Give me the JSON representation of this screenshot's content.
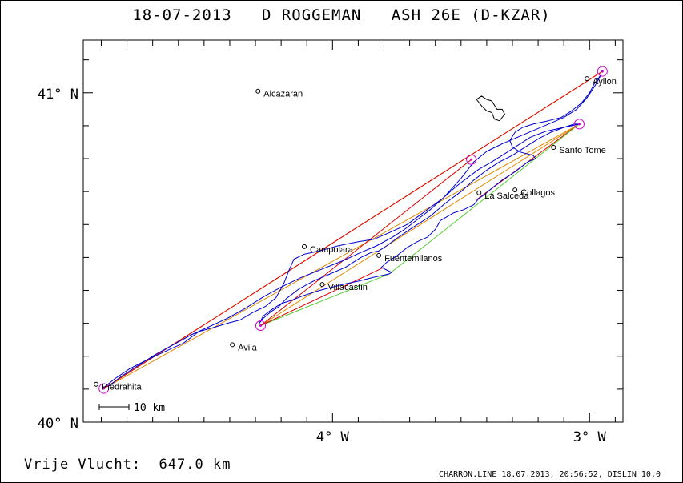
{
  "title": {
    "date": "18-07-2013",
    "pilot": "D ROGGEMAN",
    "glider": "ASH 26E (D-KZAR)"
  },
  "footer": {
    "distance_label": "Vrije Vlucht:",
    "distance_value": "647.0 km",
    "credits": "CHARRON.LINE 18.07.2013, 20:56:52, DISLIN 10.0"
  },
  "axes": {
    "lat_labels": [
      "41° N",
      "40° N"
    ],
    "lon_labels": [
      "4° W",
      "3° W"
    ],
    "lat_range": [
      40.0,
      41.16
    ],
    "lon_range": [
      -4.97,
      -2.87
    ]
  },
  "scale_bar": {
    "label": "10 km"
  },
  "colors": {
    "track": "#0000cc",
    "turnpoint": "#cc00cc",
    "leg_red": "#dd0000",
    "leg_orange": "#e08800",
    "leg_green": "#55cc33",
    "coast": "#000000"
  },
  "towns": [
    {
      "name": "Alcazaran",
      "lon": -4.29,
      "lat": 41.005
    },
    {
      "name": "Ayllon",
      "lon": -3.01,
      "lat": 41.043
    },
    {
      "name": "Santo Tome",
      "lon": -3.14,
      "lat": 40.834
    },
    {
      "name": "Collagos",
      "lon": -3.29,
      "lat": 40.705
    },
    {
      "name": "La Salceda",
      "lon": -3.43,
      "lat": 40.696
    },
    {
      "name": "Campolara",
      "lon": -4.11,
      "lat": 40.533
    },
    {
      "name": "Fuentemilanos",
      "lon": -3.82,
      "lat": 40.506
    },
    {
      "name": "Villacastin",
      "lon": -4.04,
      "lat": 40.418
    },
    {
      "name": "Avila",
      "lon": -4.39,
      "lat": 40.235
    },
    {
      "name": "Piedrahita",
      "lon": -4.92,
      "lat": 40.115
    }
  ],
  "turnpoints": [
    {
      "lon": -4.89,
      "lat": 40.102
    },
    {
      "lon": -2.95,
      "lat": 41.065
    },
    {
      "lon": -3.04,
      "lat": 40.905
    },
    {
      "lon": -3.46,
      "lat": 40.797
    },
    {
      "lon": -4.28,
      "lat": 40.293
    }
  ],
  "legs": [
    {
      "color": "orange",
      "points": [
        [
          -4.89,
          40.102
        ],
        [
          -2.95,
          41.065
        ]
      ]
    },
    {
      "color": "orange",
      "points": [
        [
          -4.89,
          40.102
        ],
        [
          -3.04,
          40.905
        ]
      ]
    },
    {
      "color": "red",
      "points": [
        [
          -4.89,
          40.102
        ],
        [
          -2.95,
          41.065
        ]
      ]
    },
    {
      "color": "orange",
      "points": [
        [
          -3.04,
          40.905
        ],
        [
          -4.28,
          40.293
        ]
      ]
    },
    {
      "color": "red",
      "points": [
        [
          -3.46,
          40.797
        ],
        [
          -4.28,
          40.293
        ]
      ]
    },
    {
      "color": "red",
      "points": [
        [
          -3.04,
          40.905
        ],
        [
          -3.44,
          40.675
        ]
      ]
    },
    {
      "color": "green",
      "points": [
        [
          -4.28,
          40.293
        ],
        [
          -3.78,
          40.45
        ],
        [
          -3.04,
          40.905
        ]
      ]
    },
    {
      "color": "red",
      "points": [
        [
          -4.28,
          40.293
        ],
        [
          -3.8,
          40.47
        ]
      ]
    }
  ],
  "track": [
    [
      -4.89,
      40.105
    ],
    [
      -4.85,
      40.13
    ],
    [
      -4.79,
      40.162
    ],
    [
      -4.72,
      40.19
    ],
    [
      -4.65,
      40.215
    ],
    [
      -4.58,
      40.24
    ],
    [
      -4.52,
      40.275
    ],
    [
      -4.46,
      40.288
    ],
    [
      -4.41,
      40.3
    ],
    [
      -4.36,
      40.31
    ],
    [
      -4.31,
      40.333
    ],
    [
      -4.26,
      40.352
    ],
    [
      -4.22,
      40.378
    ],
    [
      -4.19,
      40.42
    ],
    [
      -4.17,
      40.46
    ],
    [
      -4.15,
      40.495
    ],
    [
      -4.11,
      40.51
    ],
    [
      -4.05,
      40.52
    ],
    [
      -3.98,
      40.535
    ],
    [
      -3.9,
      40.548
    ],
    [
      -3.84,
      40.555
    ],
    [
      -3.78,
      40.575
    ],
    [
      -3.71,
      40.6
    ],
    [
      -3.64,
      40.64
    ],
    [
      -3.57,
      40.68
    ],
    [
      -3.5,
      40.74
    ],
    [
      -3.45,
      40.79
    ],
    [
      -3.4,
      40.822
    ],
    [
      -3.34,
      40.845
    ],
    [
      -3.28,
      40.865
    ],
    [
      -3.22,
      40.885
    ],
    [
      -3.16,
      40.905
    ],
    [
      -3.1,
      40.925
    ],
    [
      -3.05,
      40.95
    ],
    [
      -3.01,
      40.985
    ],
    [
      -2.98,
      41.02
    ],
    [
      -2.955,
      41.055
    ],
    [
      -2.98,
      41.03
    ],
    [
      -3.0,
      41.0
    ],
    [
      -3.03,
      40.97
    ],
    [
      -3.07,
      40.945
    ],
    [
      -3.11,
      40.925
    ],
    [
      -3.16,
      40.915
    ],
    [
      -3.22,
      40.905
    ],
    [
      -3.26,
      40.895
    ],
    [
      -3.29,
      40.88
    ],
    [
      -3.31,
      40.855
    ],
    [
      -3.3,
      40.835
    ],
    [
      -3.27,
      40.82
    ],
    [
      -3.22,
      40.81
    ],
    [
      -3.21,
      40.8
    ],
    [
      -3.24,
      40.79
    ],
    [
      -3.29,
      40.76
    ],
    [
      -3.34,
      40.735
    ],
    [
      -3.38,
      40.71
    ],
    [
      -3.41,
      40.69
    ],
    [
      -3.43,
      40.68
    ],
    [
      -3.45,
      40.66
    ],
    [
      -3.49,
      40.645
    ],
    [
      -3.53,
      40.635
    ],
    [
      -3.58,
      40.612
    ],
    [
      -3.6,
      40.585
    ],
    [
      -3.63,
      40.562
    ],
    [
      -3.67,
      40.548
    ],
    [
      -3.71,
      40.53
    ],
    [
      -3.75,
      40.505
    ],
    [
      -3.79,
      40.485
    ],
    [
      -3.81,
      40.47
    ],
    [
      -3.79,
      40.462
    ],
    [
      -3.77,
      40.455
    ],
    [
      -3.78,
      40.45
    ],
    [
      -3.84,
      40.44
    ],
    [
      -3.9,
      40.428
    ],
    [
      -3.95,
      40.42
    ],
    [
      -4.0,
      40.41
    ],
    [
      -4.05,
      40.4
    ],
    [
      -4.11,
      40.385
    ],
    [
      -4.16,
      40.37
    ],
    [
      -4.2,
      40.36
    ],
    [
      -4.24,
      40.34
    ],
    [
      -4.27,
      40.322
    ],
    [
      -4.285,
      40.3
    ],
    [
      -4.27,
      40.315
    ],
    [
      -4.24,
      40.335
    ],
    [
      -4.21,
      40.35
    ],
    [
      -4.18,
      40.375
    ],
    [
      -4.13,
      40.405
    ],
    [
      -4.07,
      40.43
    ],
    [
      -4.01,
      40.45
    ],
    [
      -3.95,
      40.47
    ],
    [
      -3.89,
      40.5
    ],
    [
      -3.85,
      40.515
    ],
    [
      -3.82,
      40.52
    ],
    [
      -3.79,
      40.535
    ],
    [
      -3.75,
      40.558
    ],
    [
      -3.69,
      40.59
    ],
    [
      -3.62,
      40.625
    ],
    [
      -3.56,
      40.665
    ],
    [
      -3.5,
      40.7
    ],
    [
      -3.45,
      40.735
    ],
    [
      -3.4,
      40.765
    ],
    [
      -3.35,
      40.79
    ],
    [
      -3.3,
      40.81
    ],
    [
      -3.25,
      40.835
    ],
    [
      -3.2,
      40.86
    ],
    [
      -3.15,
      40.88
    ],
    [
      -3.1,
      40.895
    ],
    [
      -3.06,
      40.905
    ],
    [
      -3.04,
      40.905
    ],
    [
      -3.1,
      40.895
    ],
    [
      -3.17,
      40.883
    ],
    [
      -3.23,
      40.865
    ],
    [
      -3.28,
      40.84
    ],
    [
      -3.33,
      40.815
    ],
    [
      -3.38,
      40.79
    ],
    [
      -3.43,
      40.768
    ],
    [
      -3.47,
      40.745
    ],
    [
      -3.52,
      40.715
    ],
    [
      -3.57,
      40.68
    ],
    [
      -3.62,
      40.645
    ],
    [
      -3.67,
      40.615
    ],
    [
      -3.72,
      40.585
    ],
    [
      -3.77,
      40.56
    ],
    [
      -3.83,
      40.535
    ],
    [
      -3.89,
      40.515
    ],
    [
      -3.96,
      40.49
    ],
    [
      -4.04,
      40.465
    ],
    [
      -4.12,
      40.44
    ],
    [
      -4.2,
      40.41
    ],
    [
      -4.27,
      40.38
    ],
    [
      -4.34,
      40.345
    ],
    [
      -4.41,
      40.315
    ],
    [
      -4.48,
      40.29
    ],
    [
      -4.55,
      40.265
    ],
    [
      -4.62,
      40.235
    ],
    [
      -4.69,
      40.205
    ],
    [
      -4.76,
      40.17
    ],
    [
      -4.82,
      40.14
    ],
    [
      -4.87,
      40.11
    ]
  ],
  "coast": [
    [
      -3.44,
      40.98
    ],
    [
      -3.42,
      40.99
    ],
    [
      -3.4,
      40.98
    ],
    [
      -3.38,
      40.975
    ],
    [
      -3.36,
      40.95
    ],
    [
      -3.34,
      40.95
    ],
    [
      -3.33,
      40.935
    ],
    [
      -3.35,
      40.915
    ],
    [
      -3.37,
      40.92
    ],
    [
      -3.38,
      40.94
    ],
    [
      -3.4,
      40.945
    ],
    [
      -3.42,
      40.96
    ],
    [
      -3.44,
      40.98
    ]
  ]
}
